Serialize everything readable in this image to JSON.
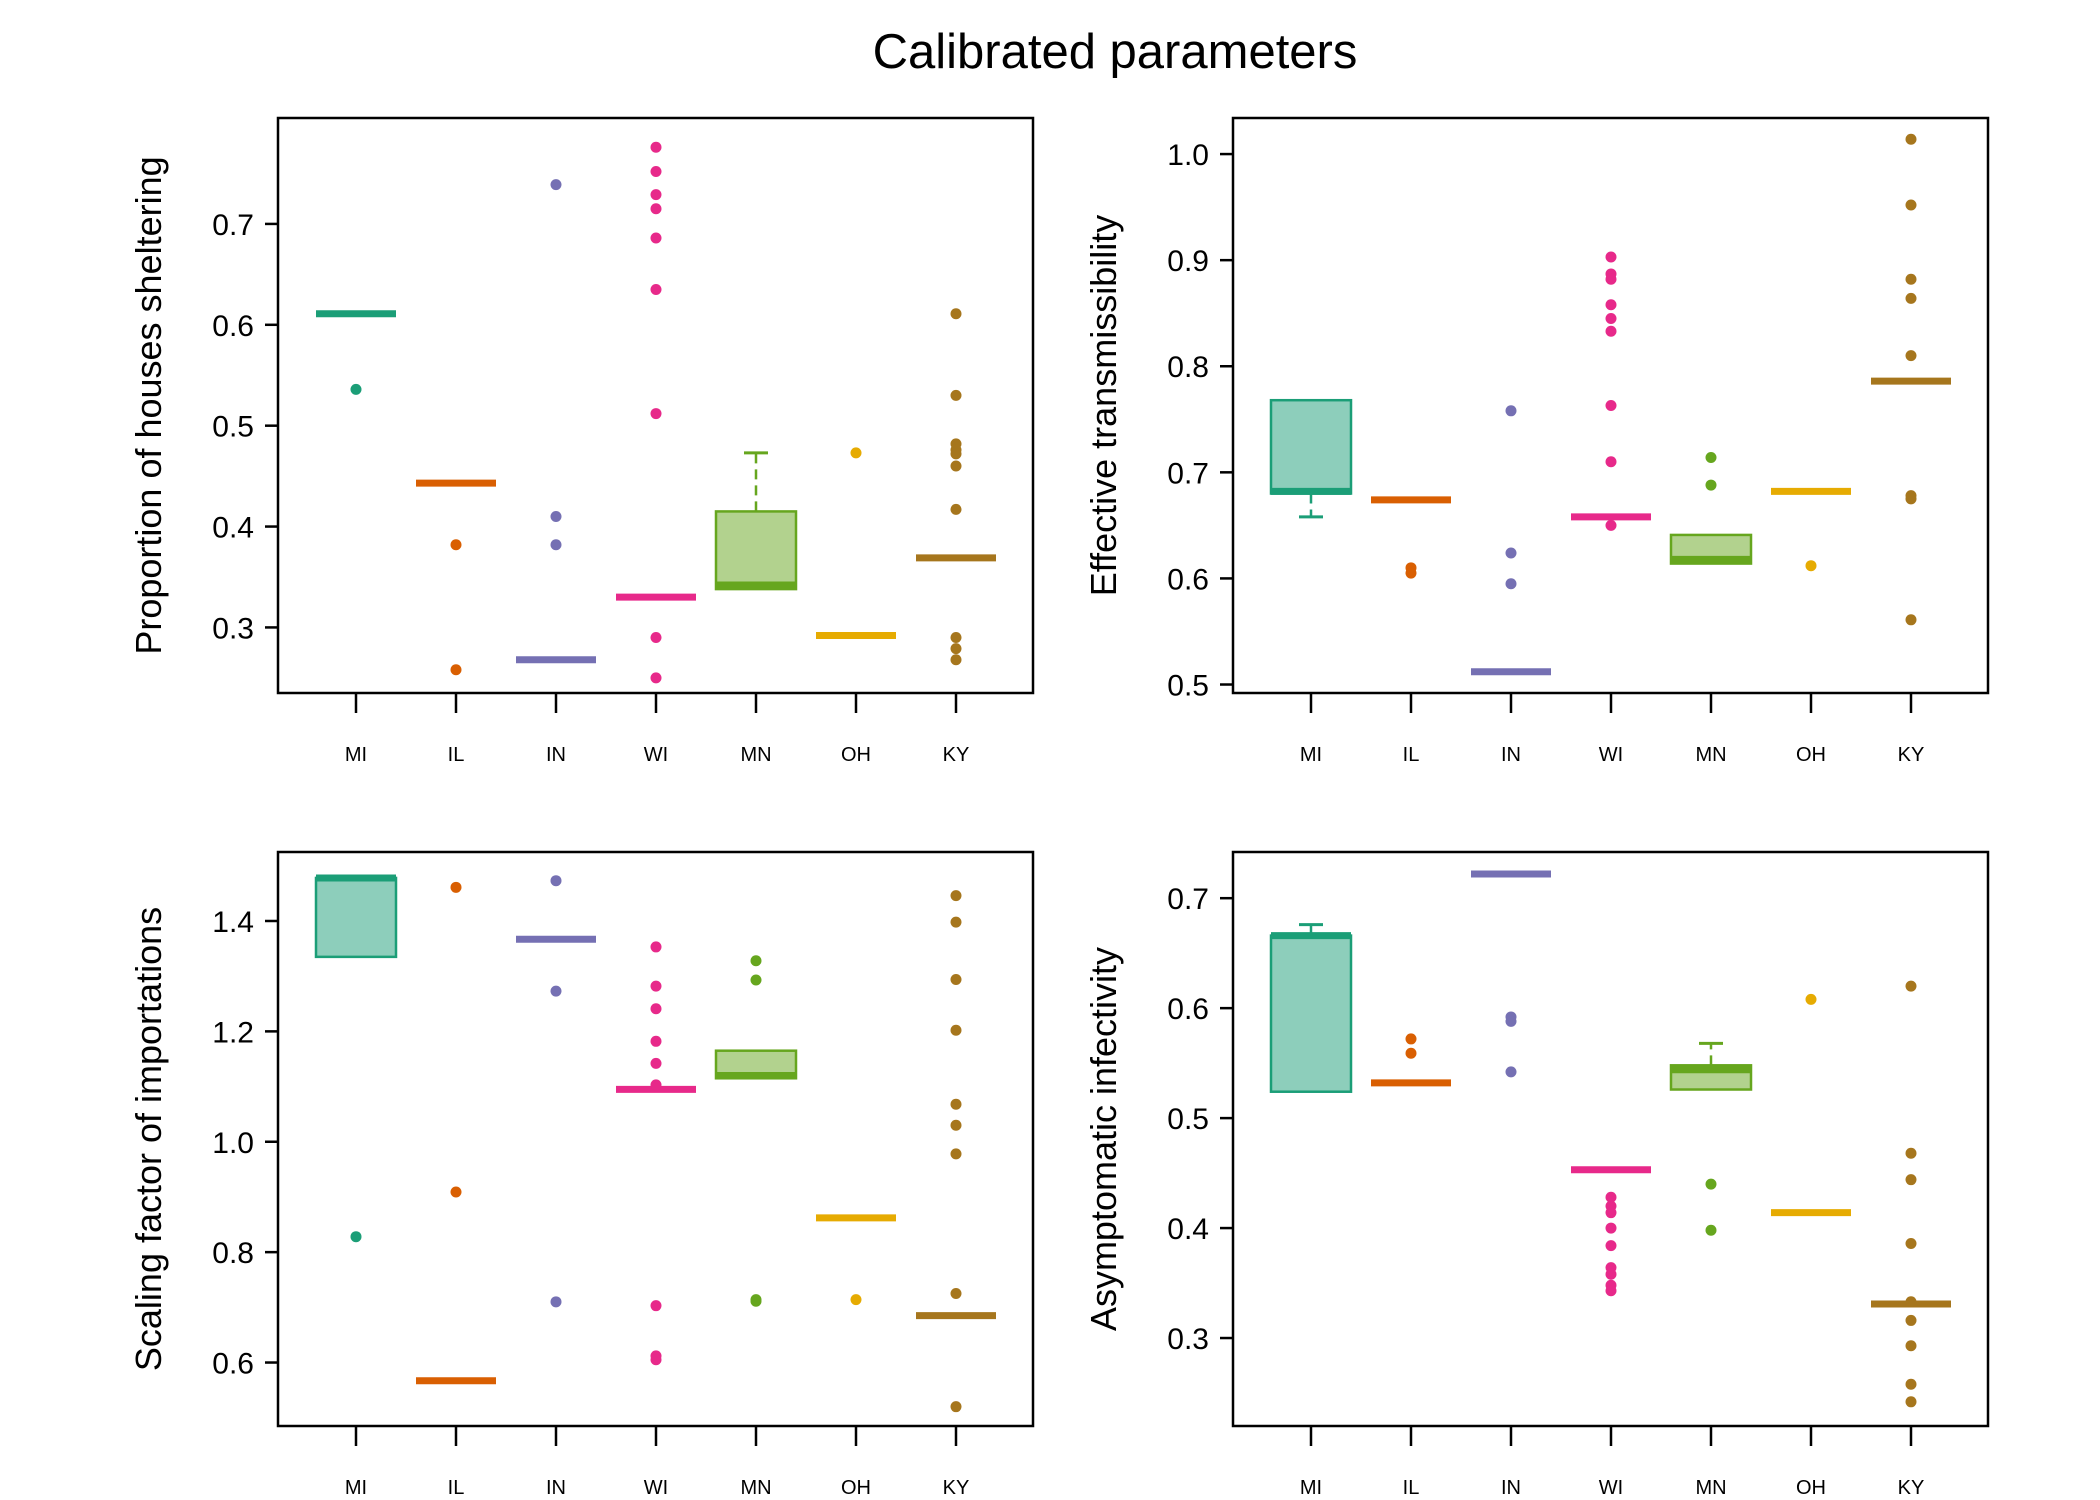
{
  "title": "Calibrated parameters",
  "colors": {
    "MI": "#1b9e77",
    "IL": "#d95f02",
    "IN": "#7570b3",
    "WI": "#e7298a",
    "MN": "#66a61e",
    "OH": "#e6ab02",
    "KY": "#a6761d"
  },
  "chart_data": [
    {
      "type": "box",
      "ylabel": "Proportion of houses sheltering",
      "categories": [
        "MI",
        "IL",
        "IN",
        "WI",
        "MN",
        "OH",
        "KY"
      ],
      "ylim": [
        0.235,
        0.805
      ],
      "yticks": [
        0.3,
        0.4,
        0.5,
        0.6,
        0.7
      ],
      "ytick_labels": [
        "0.3",
        "0.4",
        "0.5",
        "0.6",
        "0.7"
      ],
      "boxes": [
        {
          "q1": 0.611,
          "median": 0.611,
          "q3": 0.611,
          "whisker_low": 0.611,
          "whisker_high": 0.611,
          "outliers": [
            0.536
          ]
        },
        {
          "q1": 0.443,
          "median": 0.443,
          "q3": 0.443,
          "whisker_low": 0.443,
          "whisker_high": 0.443,
          "outliers": [
            0.382,
            0.258
          ]
        },
        {
          "q1": 0.268,
          "median": 0.268,
          "q3": 0.268,
          "whisker_low": 0.268,
          "whisker_high": 0.268,
          "outliers": [
            0.739,
            0.41,
            0.382
          ]
        },
        {
          "q1": 0.33,
          "median": 0.33,
          "q3": 0.33,
          "whisker_low": 0.33,
          "whisker_high": 0.33,
          "outliers": [
            0.776,
            0.752,
            0.729,
            0.715,
            0.686,
            0.635,
            0.512,
            0.29,
            0.25
          ]
        },
        {
          "q1": 0.338,
          "median": 0.342,
          "q3": 0.415,
          "whisker_low": 0.338,
          "whisker_high": 0.473,
          "outliers": []
        },
        {
          "q1": 0.292,
          "median": 0.292,
          "q3": 0.292,
          "whisker_low": 0.292,
          "whisker_high": 0.292,
          "outliers": [
            0.473
          ]
        },
        {
          "q1": 0.369,
          "median": 0.369,
          "q3": 0.369,
          "whisker_low": 0.369,
          "whisker_high": 0.369,
          "outliers": [
            0.611,
            0.53,
            0.482,
            0.476,
            0.472,
            0.46,
            0.417,
            0.29,
            0.279,
            0.268
          ]
        }
      ]
    },
    {
      "type": "box",
      "ylabel": "Effective transmissibility",
      "categories": [
        "MI",
        "IL",
        "IN",
        "WI",
        "MN",
        "OH",
        "KY"
      ],
      "ylim": [
        0.492,
        1.034
      ],
      "yticks": [
        0.5,
        0.6,
        0.7,
        0.8,
        0.9,
        1.0
      ],
      "ytick_labels": [
        "0.5",
        "0.6",
        "0.7",
        "0.8",
        "0.9",
        "1.0"
      ],
      "boxes": [
        {
          "q1": 0.68,
          "median": 0.682,
          "q3": 0.768,
          "whisker_low": 0.658,
          "whisker_high": 0.768,
          "outliers": []
        },
        {
          "q1": 0.674,
          "median": 0.674,
          "q3": 0.674,
          "whisker_low": 0.674,
          "whisker_high": 0.674,
          "outliers": [
            0.61,
            0.605
          ]
        },
        {
          "q1": 0.512,
          "median": 0.512,
          "q3": 0.512,
          "whisker_low": 0.512,
          "whisker_high": 0.512,
          "outliers": [
            0.758,
            0.624,
            0.595
          ]
        },
        {
          "q1": 0.658,
          "median": 0.658,
          "q3": 0.658,
          "whisker_low": 0.658,
          "whisker_high": 0.658,
          "outliers": [
            0.903,
            0.887,
            0.882,
            0.858,
            0.845,
            0.833,
            0.763,
            0.71,
            0.65
          ]
        },
        {
          "q1": 0.614,
          "median": 0.618,
          "q3": 0.641,
          "whisker_low": 0.614,
          "whisker_high": 0.641,
          "outliers": [
            0.714,
            0.688
          ]
        },
        {
          "q1": 0.682,
          "median": 0.682,
          "q3": 0.682,
          "whisker_low": 0.682,
          "whisker_high": 0.682,
          "outliers": [
            0.612
          ]
        },
        {
          "q1": 0.786,
          "median": 0.786,
          "q3": 0.786,
          "whisker_low": 0.786,
          "whisker_high": 0.786,
          "outliers": [
            1.014,
            0.952,
            0.882,
            0.864,
            0.81,
            0.678,
            0.675,
            0.561
          ]
        }
      ]
    },
    {
      "type": "box",
      "ylabel": "Scaling factor of importations",
      "categories": [
        "MI",
        "IL",
        "IN",
        "WI",
        "MN",
        "OH",
        "KY"
      ],
      "ylim": [
        0.485,
        1.525
      ],
      "yticks": [
        0.6,
        0.8,
        1.0,
        1.2,
        1.4
      ],
      "ytick_labels": [
        "0.6",
        "0.8",
        "1.0",
        "1.2",
        "1.4"
      ],
      "boxes": [
        {
          "q1": 1.335,
          "median": 1.478,
          "q3": 1.478,
          "whisker_low": 1.335,
          "whisker_high": 1.478,
          "outliers": [
            0.828
          ]
        },
        {
          "q1": 0.567,
          "median": 0.567,
          "q3": 0.567,
          "whisker_low": 0.567,
          "whisker_high": 0.567,
          "outliers": [
            1.461,
            0.909
          ]
        },
        {
          "q1": 1.367,
          "median": 1.367,
          "q3": 1.367,
          "whisker_low": 1.367,
          "whisker_high": 1.367,
          "outliers": [
            1.473,
            1.273,
            0.71
          ]
        },
        {
          "q1": 1.095,
          "median": 1.095,
          "q3": 1.095,
          "whisker_low": 1.095,
          "whisker_high": 1.095,
          "outliers": [
            1.353,
            1.282,
            1.241,
            1.182,
            1.142,
            1.103,
            0.703,
            0.612,
            0.605
          ]
        },
        {
          "q1": 1.115,
          "median": 1.12,
          "q3": 1.165,
          "whisker_low": 1.115,
          "whisker_high": 1.165,
          "outliers": [
            1.328,
            1.293,
            0.714,
            0.711
          ]
        },
        {
          "q1": 0.862,
          "median": 0.862,
          "q3": 0.862,
          "whisker_low": 0.862,
          "whisker_high": 0.862,
          "outliers": [
            0.714
          ]
        },
        {
          "q1": 0.685,
          "median": 0.685,
          "q3": 0.685,
          "whisker_low": 0.685,
          "whisker_high": 0.685,
          "outliers": [
            1.446,
            1.398,
            1.294,
            1.202,
            1.068,
            1.03,
            0.978,
            0.725,
            0.52
          ]
        }
      ]
    },
    {
      "type": "box",
      "ylabel": "Asymptomatic infectivity",
      "categories": [
        "MI",
        "IL",
        "IN",
        "WI",
        "MN",
        "OH",
        "KY"
      ],
      "ylim": [
        0.22,
        0.742
      ],
      "yticks": [
        0.3,
        0.4,
        0.5,
        0.6,
        0.7
      ],
      "ytick_labels": [
        "0.3",
        "0.4",
        "0.5",
        "0.6",
        "0.7"
      ],
      "boxes": [
        {
          "q1": 0.524,
          "median": 0.666,
          "q3": 0.666,
          "whisker_low": 0.524,
          "whisker_high": 0.676,
          "outliers": []
        },
        {
          "q1": 0.532,
          "median": 0.532,
          "q3": 0.532,
          "whisker_low": 0.532,
          "whisker_high": 0.532,
          "outliers": [
            0.572,
            0.559
          ]
        },
        {
          "q1": 0.722,
          "median": 0.722,
          "q3": 0.722,
          "whisker_low": 0.722,
          "whisker_high": 0.722,
          "outliers": [
            0.592,
            0.588,
            0.542
          ]
        },
        {
          "q1": 0.453,
          "median": 0.453,
          "q3": 0.453,
          "whisker_low": 0.453,
          "whisker_high": 0.453,
          "outliers": [
            0.428,
            0.42,
            0.414,
            0.4,
            0.384,
            0.364,
            0.358,
            0.348,
            0.343
          ]
        },
        {
          "q1": 0.526,
          "median": 0.544,
          "q3": 0.548,
          "whisker_low": 0.526,
          "whisker_high": 0.568,
          "outliers": [
            0.44,
            0.398
          ]
        },
        {
          "q1": 0.414,
          "median": 0.414,
          "q3": 0.414,
          "whisker_low": 0.414,
          "whisker_high": 0.414,
          "outliers": [
            0.608
          ]
        },
        {
          "q1": 0.331,
          "median": 0.331,
          "q3": 0.331,
          "whisker_low": 0.331,
          "whisker_high": 0.331,
          "outliers": [
            0.62,
            0.468,
            0.444,
            0.386,
            0.333,
            0.316,
            0.293,
            0.258,
            0.242
          ]
        }
      ]
    }
  ]
}
